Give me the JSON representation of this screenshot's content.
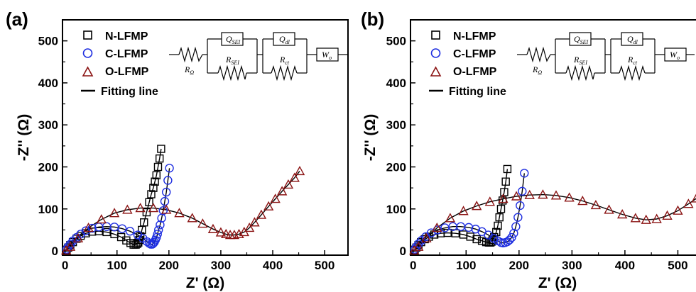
{
  "figure": {
    "panels": [
      "(a)",
      "(b)"
    ]
  },
  "circuit": {
    "q_sei": {
      "main": "Q",
      "sub": "SEI"
    },
    "r_sei": {
      "main": "R",
      "sub": "SEI"
    },
    "q_dl": {
      "main": "Q",
      "sub": "dl"
    },
    "r_ct": {
      "main": "R",
      "sub": "ct"
    },
    "w_o": {
      "main": "W",
      "sub": "o"
    },
    "r_omega": {
      "main": "R",
      "sub": "Ω"
    }
  },
  "chart_data": [
    {
      "type": "scatter",
      "panel": "(a)",
      "xlabel": "Z' (Ω)",
      "ylabel": "-Z'' (Ω)",
      "xlim": [
        -5,
        545
      ],
      "ylim": [
        -10,
        550
      ],
      "xticks": [
        0,
        100,
        200,
        300,
        400,
        500
      ],
      "yticks": [
        0,
        100,
        200,
        300,
        400,
        500
      ],
      "legend_position": "top-left",
      "series": [
        {
          "name": "N-LFMP",
          "marker": "square",
          "color": "#000000",
          "x": [
            3,
            6,
            10,
            15,
            22,
            30,
            40,
            52,
            65,
            80,
            95,
            108,
            118,
            126,
            132,
            136,
            139,
            141,
            143,
            145,
            148,
            152,
            157,
            162,
            166,
            170,
            173,
            176,
            179,
            182,
            185
          ],
          "y": [
            3,
            8,
            14,
            21,
            29,
            36,
            42,
            46,
            47,
            45,
            40,
            33,
            25,
            19,
            15,
            15,
            17,
            20,
            26,
            35,
            50,
            68,
            92,
            116,
            135,
            150,
            165,
            180,
            200,
            220,
            243
          ]
        },
        {
          "name": "C-LFMP",
          "marker": "circle",
          "color": "#1f2fe0",
          "x": [
            3,
            6,
            10,
            15,
            22,
            30,
            40,
            52,
            65,
            80,
            95,
            110,
            125,
            140,
            150,
            158,
            162,
            165,
            168,
            170,
            172,
            174,
            176,
            178,
            180,
            183,
            186,
            189,
            192,
            195,
            198,
            201
          ],
          "y": [
            4,
            10,
            16,
            24,
            32,
            40,
            48,
            54,
            57,
            58,
            57,
            53,
            47,
            38,
            30,
            22,
            18,
            16,
            16,
            18,
            21,
            26,
            32,
            40,
            50,
            62,
            78,
            96,
            118,
            140,
            168,
            197
          ]
        },
        {
          "name": "O-LFMP",
          "marker": "triangle",
          "color": "#8b1414",
          "x": [
            2,
            10,
            25,
            45,
            70,
            95,
            120,
            145,
            170,
            195,
            220,
            245,
            265,
            285,
            300,
            310,
            318,
            326,
            335,
            345,
            355,
            365,
            378,
            392,
            405,
            418,
            430,
            442,
            452
          ],
          "y": [
            1,
            10,
            30,
            55,
            75,
            90,
            98,
            102,
            102,
            98,
            90,
            78,
            65,
            52,
            44,
            40,
            38,
            38,
            40,
            45,
            55,
            68,
            86,
            106,
            124,
            142,
            158,
            174,
            190
          ]
        },
        {
          "name": "Fitting line",
          "marker": "line",
          "color": "#000000"
        }
      ]
    },
    {
      "type": "scatter",
      "panel": "(b)",
      "xlabel": "Z' (Ω)",
      "ylabel": "-Z'' (Ω)",
      "xlim": [
        -5,
        545
      ],
      "ylim": [
        -10,
        550
      ],
      "xticks": [
        0,
        100,
        200,
        300,
        400,
        500
      ],
      "yticks": [
        0,
        100,
        200,
        300,
        400,
        500
      ],
      "legend_position": "top-left",
      "series": [
        {
          "name": "N-LFMP",
          "marker": "square",
          "color": "#000000",
          "x": [
            3,
            6,
            10,
            15,
            22,
            30,
            40,
            52,
            65,
            80,
            95,
            108,
            120,
            130,
            138,
            143,
            146,
            148,
            150,
            153,
            157,
            160,
            163,
            166,
            169,
            172,
            175,
            178
          ],
          "y": [
            3,
            8,
            14,
            21,
            28,
            34,
            39,
            42,
            43,
            42,
            39,
            34,
            28,
            24,
            21,
            20,
            20,
            22,
            26,
            33,
            45,
            60,
            80,
            100,
            120,
            140,
            165,
            195
          ]
        },
        {
          "name": "C-LFMP",
          "marker": "circle",
          "color": "#1f2fe0",
          "x": [
            3,
            6,
            10,
            16,
            24,
            34,
            46,
            60,
            75,
            90,
            105,
            118,
            130,
            142,
            152,
            160,
            166,
            170,
            174,
            178,
            182,
            186,
            190,
            194,
            198,
            202,
            206,
            210
          ],
          "y": [
            4,
            10,
            17,
            25,
            34,
            43,
            50,
            55,
            58,
            58,
            56,
            52,
            46,
            38,
            30,
            24,
            20,
            19,
            20,
            22,
            26,
            32,
            42,
            58,
            80,
            108,
            142,
            185
          ]
        },
        {
          "name": "O-LFMP",
          "marker": "triangle",
          "color": "#8b1414",
          "x": [
            2,
            10,
            25,
            45,
            70,
            95,
            120,
            145,
            170,
            195,
            220,
            245,
            270,
            295,
            320,
            345,
            370,
            395,
            420,
            440,
            460,
            480,
            500,
            520,
            535
          ],
          "y": [
            1,
            10,
            30,
            55,
            78,
            95,
            107,
            117,
            124,
            130,
            133,
            134,
            132,
            127,
            119,
            109,
            98,
            87,
            78,
            74,
            76,
            84,
            96,
            112,
            125
          ]
        },
        {
          "name": "Fitting line",
          "marker": "line",
          "color": "#000000"
        }
      ]
    }
  ]
}
